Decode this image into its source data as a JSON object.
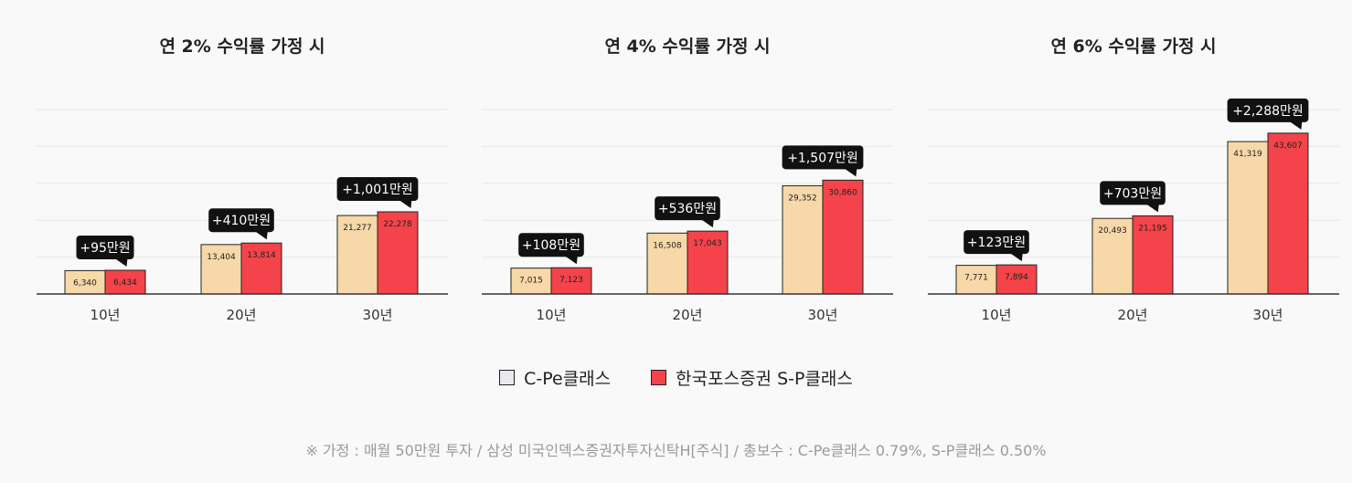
{
  "colors": {
    "cpe": "#e9e9ed",
    "sp": "#f4434a",
    "bar_cpe": "#f7d8a8",
    "bar_sp": "#f4434a",
    "callout": "#111111",
    "grid": "#e8e8e8",
    "axis": "#333333"
  },
  "chart_data": [
    {
      "type": "bar",
      "title": "연 2% 수익률 가정 시",
      "categories": [
        "10년",
        "20년",
        "30년"
      ],
      "series": [
        {
          "name": "C-Pe클래스",
          "values": [
            6340,
            13404,
            21277
          ],
          "labels": [
            "6,340",
            "13,404",
            "21,277"
          ]
        },
        {
          "name": "한국포스증권 S-P클래스",
          "values": [
            6434,
            13814,
            22278
          ],
          "labels": [
            "6,434",
            "13,814",
            "22,278"
          ]
        }
      ],
      "differences": [
        "+95만원",
        "+410만원",
        "+1,001만원"
      ],
      "ylim": [
        0,
        50000
      ],
      "grid": true
    },
    {
      "type": "bar",
      "title": "연 4% 수익률 가정 시",
      "categories": [
        "10년",
        "20년",
        "30년"
      ],
      "series": [
        {
          "name": "C-Pe클래스",
          "values": [
            7015,
            16508,
            29352
          ],
          "labels": [
            "7,015",
            "16,508",
            "29,352"
          ]
        },
        {
          "name": "한국포스증권 S-P클래스",
          "values": [
            7123,
            17043,
            30860
          ],
          "labels": [
            "7,123",
            "17,043",
            "30,860"
          ]
        }
      ],
      "differences": [
        "+108만원",
        "+536만원",
        "+1,507만원"
      ],
      "ylim": [
        0,
        50000
      ],
      "grid": true
    },
    {
      "type": "bar",
      "title": "연 6% 수익률 가정 시",
      "categories": [
        "10년",
        "20년",
        "30년"
      ],
      "series": [
        {
          "name": "C-Pe클래스",
          "values": [
            7771,
            20493,
            41319
          ],
          "labels": [
            "7,771",
            "20,493",
            "41,319"
          ]
        },
        {
          "name": "한국포스증권 S-P클래스",
          "values": [
            7894,
            21195,
            43607
          ],
          "labels": [
            "7,894",
            "21,195",
            "43,607"
          ]
        }
      ],
      "differences": [
        "+123만원",
        "+703만원",
        "+2,288만원"
      ],
      "ylim": [
        0,
        50000
      ],
      "grid": true
    }
  ],
  "legend": {
    "items": [
      {
        "label": "C-Pe클래스"
      },
      {
        "label": "한국포스증권 S-P클래스"
      }
    ],
    "placement": "bottom-center"
  },
  "footnote": "※ 가정 : 매월 50만원 투자 / 삼성 미국인덱스증권자투자신탁H[주식] / 총보수 : C-Pe클래스 0.79%, S-P클래스 0.50%"
}
